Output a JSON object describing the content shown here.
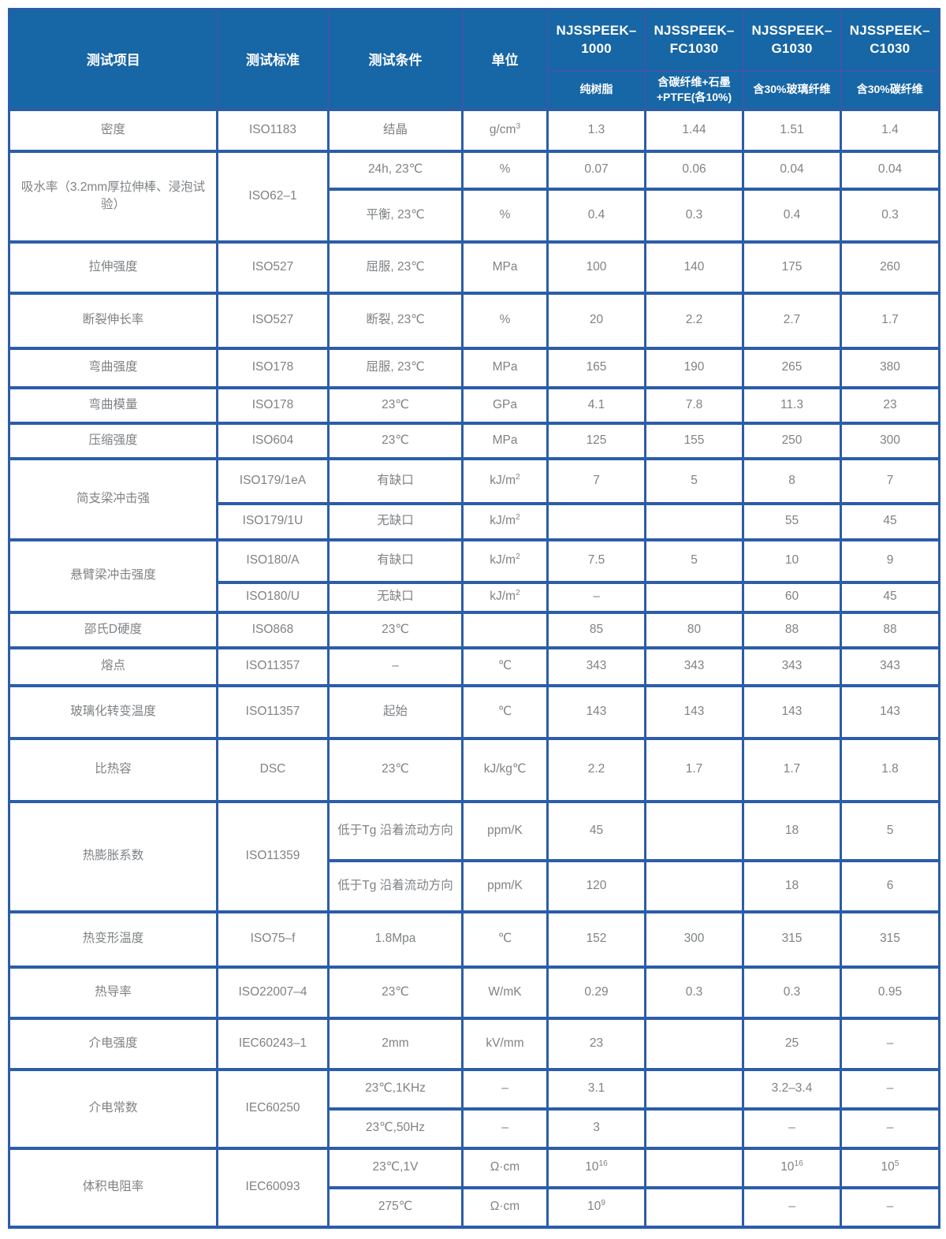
{
  "colors": {
    "header_bg": "#1766A6",
    "border": "#2B5DA9",
    "header_divider": "#3D56A9",
    "cell_text": "#7F8285",
    "header_text": "#FFFFFF",
    "page_bg": "#FFFFFF"
  },
  "table": {
    "header": {
      "col_labels": [
        "测试项目",
        "测试标准",
        "测试条件",
        "单位"
      ],
      "products": [
        {
          "name": "NJSSPEEK–1000",
          "desc": "纯树脂"
        },
        {
          "name": "NJSSPEEK–FC1030",
          "desc": "含碳纤维+石墨+PTFE(各10%)"
        },
        {
          "name": "NJSSPEEK–G1030",
          "desc": "含30%玻璃纤维"
        },
        {
          "name": "NJSSPEEK–C1030",
          "desc": "含30%碳纤维"
        }
      ]
    },
    "rows": [
      [
        "密度",
        "ISO1183",
        "结晶",
        "g/cm^3",
        "1.3",
        "1.44",
        "1.51",
        "1.4"
      ],
      [
        {
          "t": "吸水率（3.2mm厚拉伸棒、浸泡试验）",
          "rs": 2
        },
        {
          "t": "ISO62–1",
          "rs": 2
        },
        "24h, 23℃",
        "%",
        "0.07",
        "0.06",
        "0.04",
        "0.04"
      ],
      [
        "平衡, 23℃",
        "%",
        "0.4",
        "0.3",
        "0.4",
        "0.3"
      ],
      [
        "拉伸强度",
        "ISO527",
        "屈服, 23℃",
        "MPa",
        "100",
        "140",
        "175",
        "260"
      ],
      [
        "断裂伸长率",
        "ISO527",
        "断裂, 23℃",
        "%",
        "20",
        "2.2",
        "2.7",
        "1.7"
      ],
      [
        "弯曲强度",
        "ISO178",
        "屈服, 23℃",
        "MPa",
        "165",
        "190",
        "265",
        "380"
      ],
      [
        "弯曲模量",
        "ISO178",
        "23℃",
        "GPa",
        "4.1",
        "7.8",
        "11.3",
        "23"
      ],
      [
        "压缩强度",
        "ISO604",
        "23℃",
        "MPa",
        "125",
        "155",
        "250",
        "300"
      ],
      [
        {
          "t": "简支梁冲击强",
          "rs": 2
        },
        "ISO179/1eA",
        "有缺口",
        "kJ/m^2",
        "7",
        "5",
        "8",
        "7"
      ],
      [
        "ISO179/1U",
        "无缺口",
        "kJ/m^2",
        "",
        "",
        "55",
        "45"
      ],
      [
        {
          "t": "悬臂梁冲击强度",
          "rs": 2
        },
        "ISO180/A",
        "有缺口",
        "kJ/m^2",
        "7.5",
        "5",
        "10",
        "9"
      ],
      [
        "ISO180/U",
        "无缺口",
        "kJ/m^2",
        "–",
        "",
        "60",
        "45"
      ],
      [
        "邵氏D硬度",
        "ISO868",
        "23℃",
        "",
        "85",
        "80",
        "88",
        "88"
      ],
      [
        "熔点",
        "ISO11357",
        "–",
        "℃",
        "343",
        "343",
        "343",
        "343"
      ],
      [
        "玻璃化转变温度",
        "ISO11357",
        "起始",
        "℃",
        "143",
        "143",
        "143",
        "143"
      ],
      [
        "比热容",
        "DSC",
        "23℃",
        "kJ/kg℃",
        "2.2",
        "1.7",
        "1.7",
        "1.8"
      ],
      [
        {
          "t": "热膨胀系数",
          "rs": 2
        },
        {
          "t": "ISO11359",
          "rs": 2
        },
        "低于Tg 沿着流动方向",
        "ppm/K",
        "45",
        "",
        "18",
        "5"
      ],
      [
        "低于Tg 沿着流动方向",
        "ppm/K",
        "120",
        "",
        "18",
        "6"
      ],
      [
        "热变形温度",
        "ISO75–f",
        "1.8Mpa",
        "℃",
        "152",
        "300",
        "315",
        "315"
      ],
      [
        "热导率",
        "ISO22007–4",
        "23℃",
        "W/mK",
        "0.29",
        "0.3",
        "0.3",
        "0.95"
      ],
      [
        "介电强度",
        "IEC60243–1",
        "2mm",
        "kV/mm",
        "23",
        "",
        "25",
        "–"
      ],
      [
        {
          "t": "介电常数",
          "rs": 2
        },
        {
          "t": "IEC60250",
          "rs": 2
        },
        "23℃,1KHz",
        "–",
        "3.1",
        "",
        "3.2–3.4",
        "–"
      ],
      [
        "23℃,50Hz",
        "–",
        "3",
        "",
        "–",
        "–"
      ],
      [
        {
          "t": "体积电阻率",
          "rs": 2
        },
        {
          "t": "IEC60093",
          "rs": 2
        },
        "23℃,1V",
        "Ω·cm",
        "10^16",
        "",
        "10^16",
        "10^5"
      ],
      [
        "275℃",
        "Ω·cm",
        "10^9",
        "",
        "–",
        "–"
      ]
    ]
  }
}
